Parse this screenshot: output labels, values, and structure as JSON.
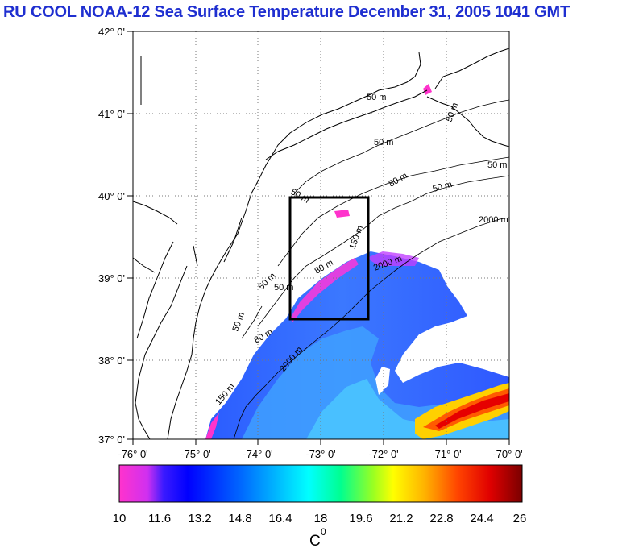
{
  "title": "RU COOL  NOAA-12 Sea Surface Temperature December 31, 2005 1041 GMT",
  "lat_labels": [
    "42° 0'",
    "41° 0'",
    "40° 0'",
    "39° 0'",
    "38° 0'",
    "37° 0'"
  ],
  "lon_labels": [
    "-76° 0'",
    "-75° 0'",
    "-74° 0'",
    "-73° 0'",
    "-72° 0'",
    "-71° 0'",
    "-70° 0'"
  ],
  "contour_labels": [
    "50 m",
    "50 m",
    "50 m",
    "80 m",
    "50 m",
    "50 m",
    "2000 m",
    "150 m",
    "80 m",
    "2000 m",
    "50 m",
    "50 m",
    "50 m",
    "50 m",
    "2000 m",
    "150 m",
    "80 m"
  ],
  "colorbar": {
    "ticks": [
      "10",
      "11.6",
      "13.2",
      "14.8",
      "16.4",
      "18",
      "19.6",
      "21.2",
      "22.8",
      "24.4",
      "26"
    ],
    "unit_label": "C",
    "unit_sup": "0",
    "colors": [
      "#ff33cc",
      "#c040ff",
      "#3a1aff",
      "#0000ff",
      "#0066ff",
      "#00b4ff",
      "#00ffff",
      "#00ff99",
      "#66ff33",
      "#ffff00",
      "#ffb000",
      "#ff5500",
      "#ff0000",
      "#cc0000",
      "#800000"
    ]
  },
  "colors": {
    "title": "#1f2fd0",
    "land_outline": "#000000",
    "box": "#000000"
  },
  "map": {
    "lat_range": [
      37,
      42
    ],
    "lon_range": [
      -76,
      -70
    ],
    "grid": true
  }
}
